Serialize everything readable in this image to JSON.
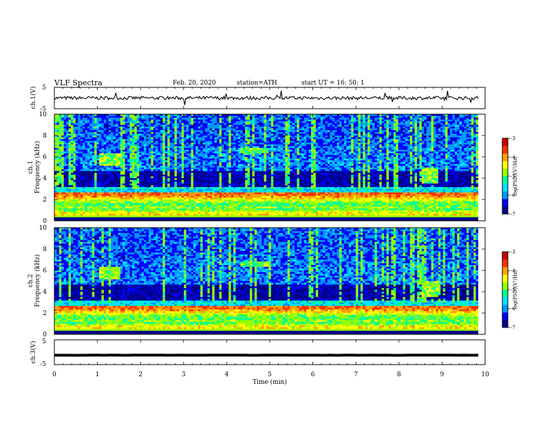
{
  "header": {
    "title": "VLF  Spectra",
    "date": "Feb. 20, 2020",
    "station": "station=ATH",
    "start": "start  UT  =    16: 50: 1"
  },
  "colors": {
    "map": [
      "#00008c",
      "#0000ff",
      "#0096ff",
      "#00e6ff",
      "#00ff96",
      "#96ff00",
      "#ffff00",
      "#ffa000",
      "#ff3000",
      "#c80000"
    ]
  },
  "chart_data": [
    {
      "type": "line",
      "name": "ch1-waveform",
      "ylabel": "ch.1(V)",
      "yticks": [
        "5",
        "-5"
      ],
      "ylim": [
        -5,
        5
      ],
      "xlim": [
        0,
        10
      ],
      "baseline": 0,
      "noise_amplitude": 0.8
    },
    {
      "type": "heatmap",
      "name": "ch1-spectrogram",
      "ylabel_line1": "ch.1",
      "ylabel_line2": "Frequency (kHz)",
      "xlim": [
        0,
        10
      ],
      "ylim": [
        0,
        10
      ],
      "yticks": [
        "0",
        "2",
        "4",
        "6",
        "8",
        "10"
      ],
      "colorbar": {
        "label": "log(PSD)(V²/Hz)",
        "ticks": [
          "-3",
          "-4",
          "-5",
          "-6",
          "-7"
        ],
        "range": [
          -7,
          -3
        ]
      },
      "features": [
        {
          "desc": "strong low-frequency band",
          "freq_khz": [
            0.5,
            2.7
          ],
          "level": -3.8
        },
        {
          "desc": "hiss burst",
          "time_min": [
            8.55,
            8.9
          ],
          "freq_khz": [
            3.5,
            5.0
          ]
        },
        {
          "desc": "whistler trace",
          "time_min": [
            1.05,
            1.55
          ],
          "freq_khz": [
            5.2,
            6.3
          ]
        },
        {
          "desc": "emission",
          "time_min": [
            4.3,
            5.0
          ],
          "freq_khz": [
            6.4,
            6.9
          ]
        }
      ]
    },
    {
      "type": "heatmap",
      "name": "ch2-spectrogram",
      "ylabel_line1": "ch.2",
      "ylabel_line2": "Frequency (kHz)",
      "xlim": [
        0,
        10
      ],
      "ylim": [
        0,
        10
      ],
      "yticks": [
        "0",
        "2",
        "4",
        "6",
        "8",
        "10"
      ],
      "colorbar": {
        "label": "log(PSD)(V²/Hz)",
        "ticks": [
          "-3",
          "-4",
          "-5",
          "-6",
          "-7"
        ],
        "range": [
          -7,
          -3
        ]
      },
      "features": [
        {
          "desc": "strong low-frequency band",
          "freq_khz": [
            0.5,
            2.8
          ],
          "level": -3.7
        },
        {
          "desc": "hiss burst",
          "time_min": [
            8.55,
            8.9
          ],
          "freq_khz": [
            3.5,
            5.0
          ]
        },
        {
          "desc": "whistler trace",
          "time_min": [
            1.05,
            1.55
          ],
          "freq_khz": [
            5.2,
            6.3
          ]
        },
        {
          "desc": "emission",
          "time_min": [
            4.3,
            5.0
          ],
          "freq_khz": [
            6.4,
            6.9
          ]
        }
      ]
    },
    {
      "type": "line",
      "name": "ch3-waveform",
      "ylabel": "ch.3(V)",
      "yticks": [
        "5",
        "-5"
      ],
      "ylim": [
        -5,
        5
      ],
      "xlim": [
        0,
        10
      ],
      "baseline": -1.2,
      "noise_amplitude": 0.05
    }
  ],
  "xaxis": {
    "label": "Time  (min)",
    "ticks": [
      "0",
      "1",
      "2",
      "3",
      "4",
      "5",
      "6",
      "7",
      "8",
      "9",
      "10"
    ]
  }
}
